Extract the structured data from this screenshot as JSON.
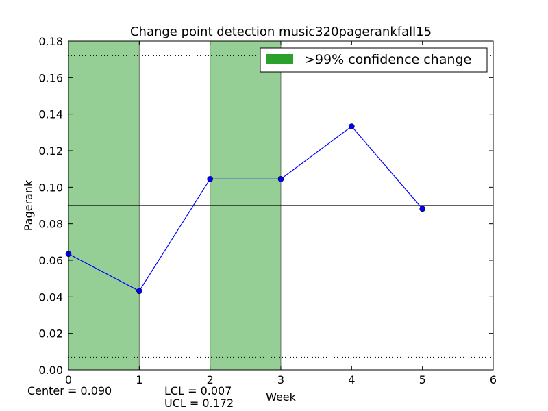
{
  "chart_data": {
    "type": "line",
    "title": "Change point detection music320pagerankfall15",
    "xlabel": "Week",
    "ylabel": "Pagerank",
    "xlim": [
      0,
      6
    ],
    "ylim": [
      0,
      0.18
    ],
    "x_ticks": [
      0,
      1,
      2,
      3,
      4,
      5,
      6
    ],
    "x_tick_labels": [
      "0",
      "1",
      "2",
      "3",
      "4",
      "5",
      "6"
    ],
    "y_ticks": [
      0,
      0.02,
      0.04,
      0.06,
      0.08,
      0.1,
      0.12,
      0.14,
      0.16,
      0.18
    ],
    "y_tick_labels": [
      "0.00",
      "0.02",
      "0.04",
      "0.06",
      "0.08",
      "0.10",
      "0.12",
      "0.14",
      "0.16",
      "0.18"
    ],
    "series": [
      {
        "x": [
          0,
          1,
          2,
          3,
          4,
          5
        ],
        "values": [
          0.0635,
          0.0432,
          0.1045,
          0.1045,
          0.1333,
          0.0882
        ],
        "color": "#0000ff"
      }
    ],
    "center_line": 0.09,
    "lcl": 0.007,
    "ucl": 0.172,
    "change_regions": [
      [
        0,
        1
      ],
      [
        2,
        3
      ]
    ],
    "region_color": "#2ca02c",
    "legend": {
      "label": ">99% confidence change",
      "placement": "top-right"
    },
    "annotations": {
      "center": "Center = 0.090",
      "lcl": "LCL = 0.007",
      "ucl": "UCL = 0.172"
    },
    "grid": false
  }
}
